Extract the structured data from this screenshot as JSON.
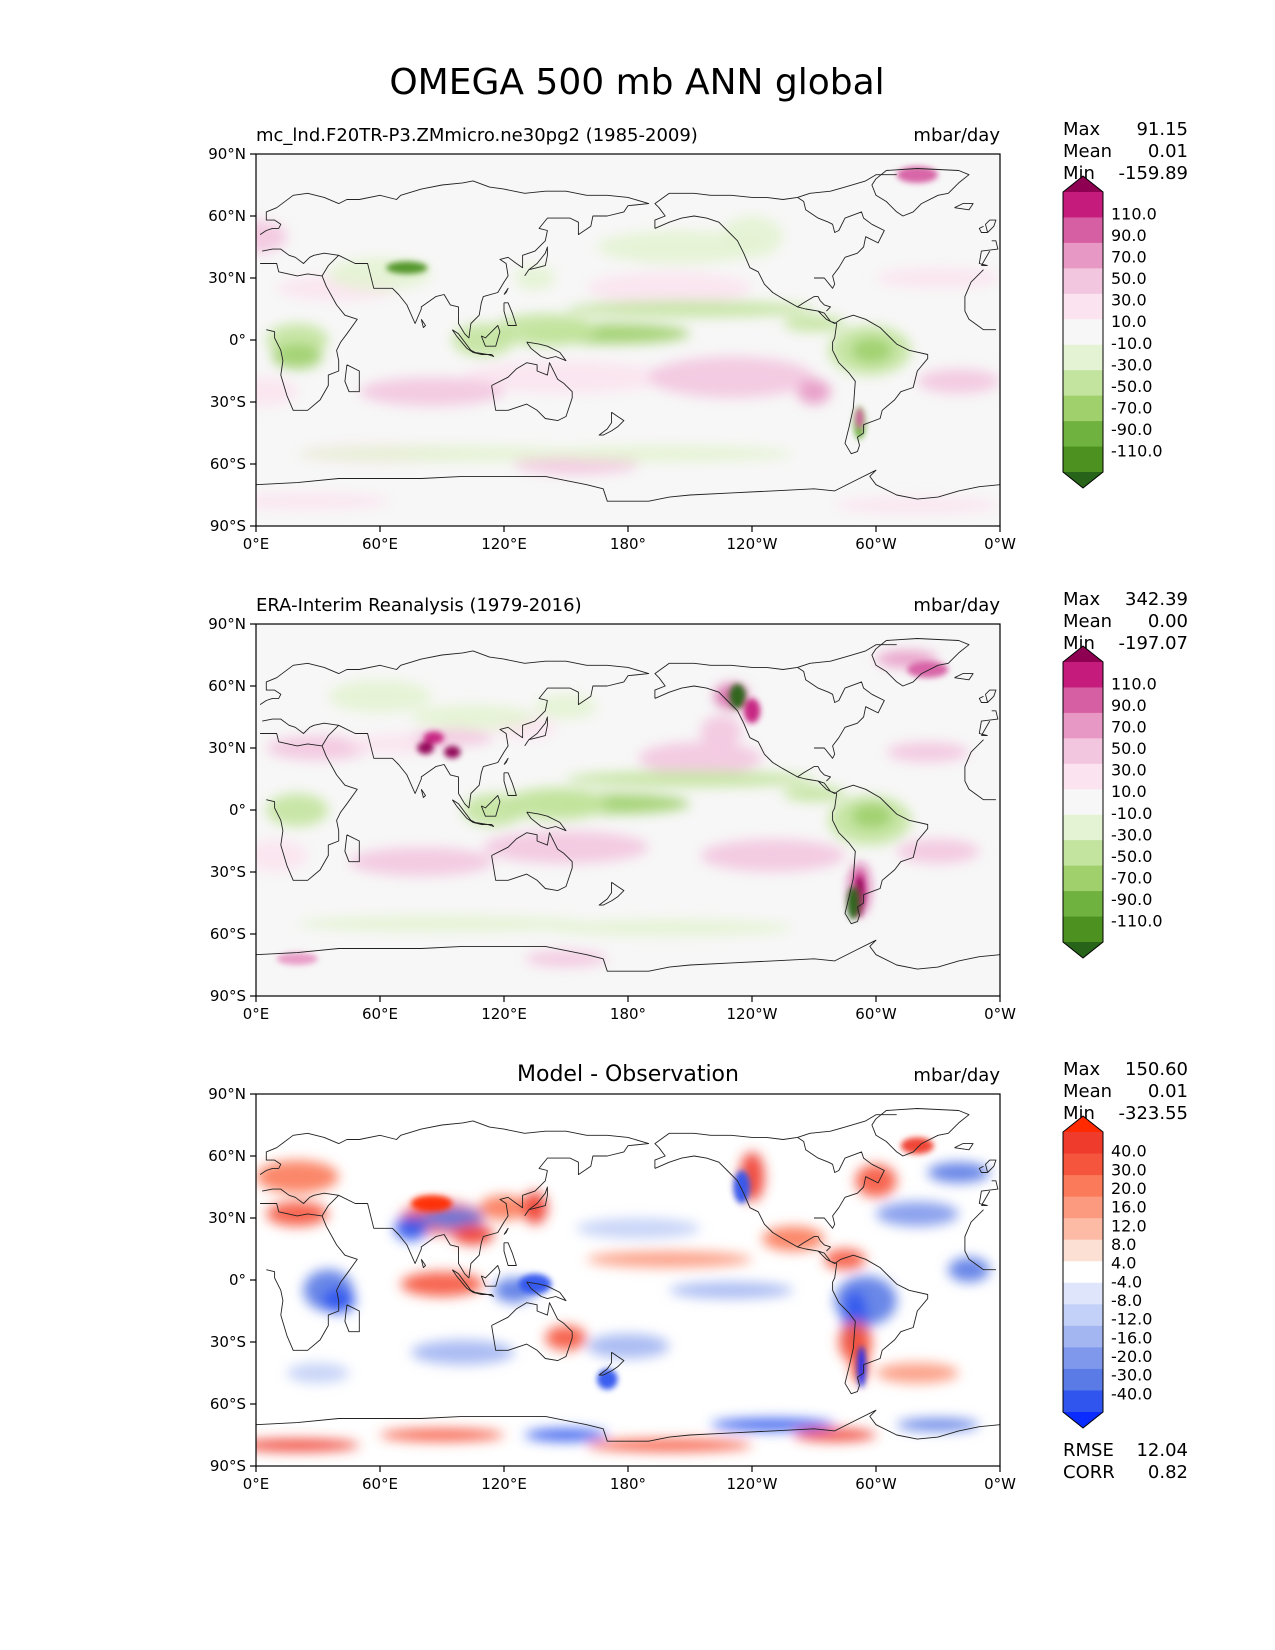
{
  "figure": {
    "title": "OMEGA 500 mb ANN global",
    "x_ticks": [
      "0°E",
      "60°E",
      "120°E",
      "180°",
      "120°W",
      "60°W",
      "0°W"
    ],
    "y_ticks": [
      "90°N",
      "60°N",
      "30°N",
      "0°",
      "30°S",
      "60°S",
      "90°S"
    ]
  },
  "chart_data": [
    {
      "type": "heatmap",
      "id": "model",
      "title": "mc_lnd.F20TR-P3.ZMmicro.ne30pg2 (1985-2009)",
      "units": "mbar/day",
      "stats": {
        "max_label": "Max",
        "max": "91.15",
        "mean_label": "Mean",
        "mean": "0.01",
        "min_label": "Min",
        "min": "-159.89"
      },
      "colorbar": {
        "levels": [
          "110.0",
          "90.0",
          "70.0",
          "50.0",
          "30.0",
          "10.0",
          "-10.0",
          "-30.0",
          "-50.0",
          "-70.0",
          "-90.0",
          "-110.0"
        ],
        "colors": [
          "#8e0152",
          "#c51b7d",
          "#d65ea3",
          "#e898c5",
          "#f3c6e0",
          "#fbe4f0",
          "#f7f7f7",
          "#e4f3d3",
          "#c3e49f",
          "#9fd06c",
          "#6fb23f",
          "#4d9221",
          "#276419"
        ]
      },
      "xlim": [
        0,
        360
      ],
      "ylim": [
        -90,
        90
      ]
    },
    {
      "type": "heatmap",
      "id": "obs",
      "title": "ERA-Interim Reanalysis (1979-2016)",
      "units": "mbar/day",
      "stats": {
        "max_label": "Max",
        "max": "342.39",
        "mean_label": "Mean",
        "mean": "0.00",
        "min_label": "Min",
        "min": "-197.07"
      },
      "colorbar": {
        "levels": [
          "110.0",
          "90.0",
          "70.0",
          "50.0",
          "30.0",
          "10.0",
          "-10.0",
          "-30.0",
          "-50.0",
          "-70.0",
          "-90.0",
          "-110.0"
        ],
        "colors": [
          "#8e0152",
          "#c51b7d",
          "#d65ea3",
          "#e898c5",
          "#f3c6e0",
          "#fbe4f0",
          "#f7f7f7",
          "#e4f3d3",
          "#c3e49f",
          "#9fd06c",
          "#6fb23f",
          "#4d9221",
          "#276419"
        ]
      },
      "xlim": [
        0,
        360
      ],
      "ylim": [
        -90,
        90
      ]
    },
    {
      "type": "heatmap",
      "id": "diff",
      "title": "Model - Observation",
      "units": "mbar/day",
      "stats": {
        "max_label": "Max",
        "max": "150.60",
        "mean_label": "Mean",
        "mean": "0.01",
        "min_label": "Min",
        "min": "-323.55"
      },
      "metrics": {
        "rmse_label": "RMSE",
        "rmse": "12.04",
        "corr_label": "CORR",
        "corr": "0.82"
      },
      "colorbar": {
        "levels": [
          "40.0",
          "30.0",
          "20.0",
          "16.0",
          "12.0",
          "8.0",
          "4.0",
          "-4.0",
          "-8.0",
          "-12.0",
          "-16.0",
          "-20.0",
          "-30.0",
          "-40.0"
        ],
        "colors": [
          "#ff2a00",
          "#ef3b2c",
          "#f6553d",
          "#fb7a5a",
          "#fc9a80",
          "#fdbba5",
          "#fde0d4",
          "#ffffff",
          "#dfe6fb",
          "#c3d0f7",
          "#a3b6f2",
          "#7f98ec",
          "#5a7ae6",
          "#2f55ee",
          "#0a2cff"
        ]
      },
      "xlim": [
        0,
        360
      ],
      "ylim": [
        -90,
        90
      ]
    }
  ]
}
